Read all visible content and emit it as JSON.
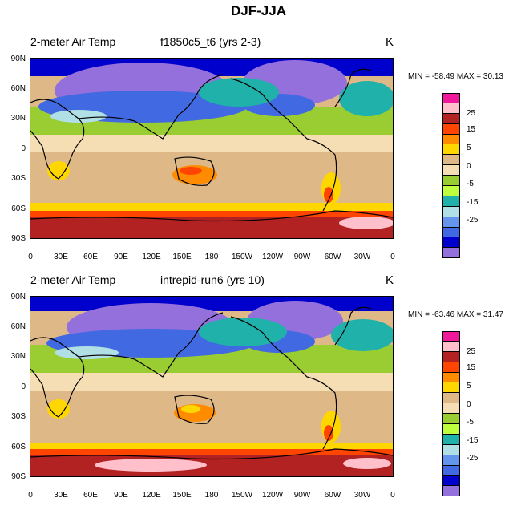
{
  "title": "DJF-JJA",
  "colors": {
    "levels": [
      "#f0199b",
      "#ffc0cb",
      "#b22222",
      "#ff4500",
      "#ff8c00",
      "#ffd700",
      "#deb887",
      "#f5deb3",
      "#9acd32",
      "#c0ff3e",
      "#20b2aa",
      "#b0e0e6",
      "#6495ed",
      "#4169e1",
      "#0000cd",
      "#9370db"
    ],
    "coast": "#000000"
  },
  "colorbar_labels": [
    "25",
    "15",
    "5",
    "0",
    "-5",
    "-15",
    "-25"
  ],
  "lat_ticks": [
    "90N",
    "60N",
    "30N",
    "0",
    "30S",
    "60S",
    "90S"
  ],
  "lon_ticks": [
    "0",
    "30E",
    "60E",
    "90E",
    "120E",
    "150E",
    "180",
    "150W",
    "120W",
    "90W",
    "60W",
    "30W",
    "0"
  ],
  "panels": [
    {
      "variable": "2-meter Air Temp",
      "case": "f1850c5_t6 (yrs 2-3)",
      "units": "K",
      "stats": "MIN = -58.49 MAX =  30.13"
    },
    {
      "variable": "2-meter Air Temp",
      "case": "intrepid-run6 (yrs 10)",
      "units": "K",
      "stats": "MIN = -63.46 MAX =  31.47"
    }
  ]
}
